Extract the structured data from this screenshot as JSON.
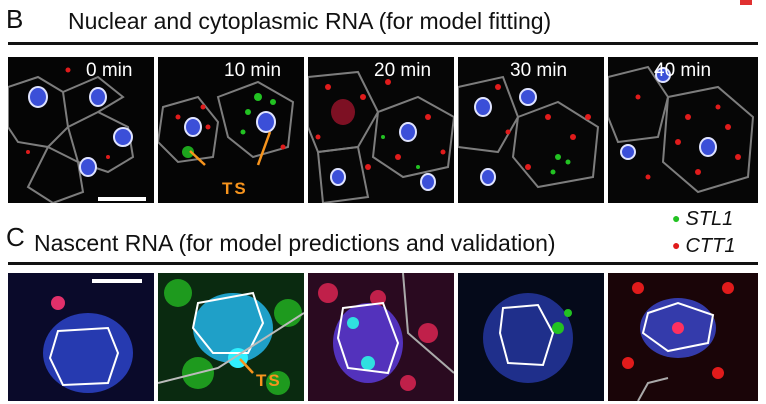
{
  "panel_b": {
    "letter": "B",
    "title": "Nuclear and cytoplasmic RNA (for model fitting)",
    "timepoints": [
      "0 min",
      "10 min",
      "20 min",
      "30 min",
      "40 min"
    ],
    "ts_label": "TS"
  },
  "panel_c": {
    "letter": "C",
    "title": "Nascent RNA (for model predictions and validation)",
    "legend": [
      {
        "name": "STL1",
        "color": "#22c222"
      },
      {
        "name": "CTT1",
        "color": "#e01b1b"
      }
    ],
    "ts_label": "TS"
  },
  "colors": {
    "nucleus": "#3b4fd8",
    "stl1": "#22c222",
    "ctt1": "#e01b1b",
    "outline": "#8a8a8a",
    "ts_arrow": "#f7941d"
  }
}
